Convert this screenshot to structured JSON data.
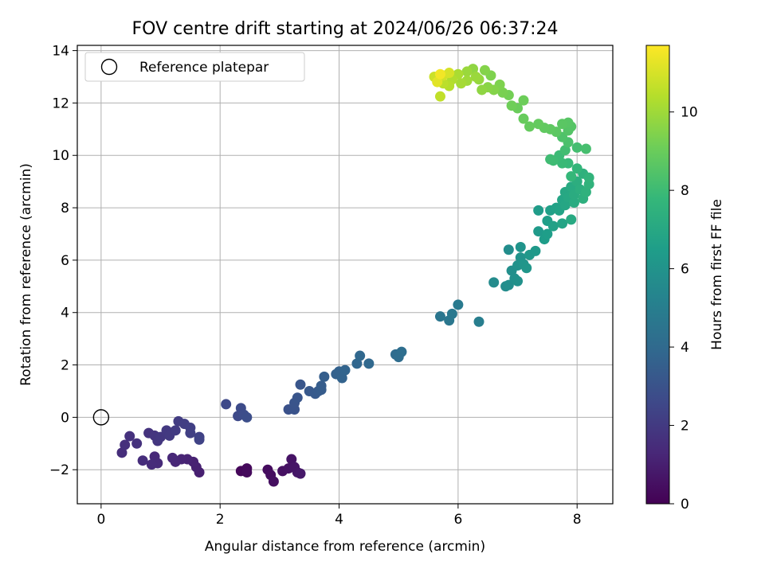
{
  "chart_data": {
    "type": "scatter",
    "title": "FOV centre drift starting at 2024/06/26 06:37:24",
    "xlabel": "Angular distance from reference (arcmin)",
    "ylabel": "Rotation from reference (arcmin)",
    "xlim": [
      -0.4,
      8.6
    ],
    "ylim": [
      -3.3,
      14.2
    ],
    "xticks": [
      0,
      2,
      4,
      6,
      8
    ],
    "yticks": [
      -2,
      0,
      2,
      4,
      6,
      8,
      10,
      12,
      14
    ],
    "grid": true,
    "legend": {
      "position": "top-left",
      "entries": [
        "Reference platepar"
      ]
    },
    "reference_point": {
      "x": 0,
      "y": 0
    },
    "colorbar": {
      "label": "Hours from first FF file",
      "colormap": "viridis",
      "range": [
        0,
        11.7
      ],
      "ticks": [
        0,
        2,
        4,
        6,
        8,
        10
      ]
    },
    "points_x_y_hours": [
      [
        2.35,
        -2.05,
        0.2
      ],
      [
        2.45,
        -1.95,
        0.25
      ],
      [
        2.45,
        -2.1,
        0.3
      ],
      [
        2.8,
        -2.0,
        0.35
      ],
      [
        2.85,
        -2.2,
        0.4
      ],
      [
        2.9,
        -2.45,
        0.45
      ],
      [
        3.05,
        -2.05,
        0.5
      ],
      [
        3.15,
        -1.95,
        0.55
      ],
      [
        3.2,
        -1.6,
        0.6
      ],
      [
        3.25,
        -1.9,
        0.65
      ],
      [
        3.3,
        -2.1,
        0.7
      ],
      [
        3.35,
        -2.15,
        0.75
      ],
      [
        1.65,
        -2.1,
        1.0
      ],
      [
        1.6,
        -1.9,
        1.05
      ],
      [
        1.55,
        -1.7,
        1.1
      ],
      [
        1.45,
        -1.6,
        1.15
      ],
      [
        1.35,
        -1.6,
        1.2
      ],
      [
        1.25,
        -1.7,
        1.25
      ],
      [
        1.2,
        -1.55,
        1.3
      ],
      [
        0.9,
        -1.5,
        1.35
      ],
      [
        0.95,
        -1.75,
        1.4
      ],
      [
        0.85,
        -1.8,
        1.45
      ],
      [
        0.7,
        -1.65,
        1.5
      ],
      [
        0.35,
        -1.35,
        1.55
      ],
      [
        0.4,
        -1.05,
        1.6
      ],
      [
        0.48,
        -0.72,
        1.65
      ],
      [
        0.6,
        -1.0,
        1.7
      ],
      [
        0.8,
        -0.6,
        1.75
      ],
      [
        0.9,
        -0.7,
        1.8
      ],
      [
        0.95,
        -0.9,
        1.85
      ],
      [
        1.0,
        -0.75,
        1.9
      ],
      [
        1.1,
        -0.5,
        1.95
      ],
      [
        1.15,
        -0.7,
        2.0
      ],
      [
        1.25,
        -0.5,
        2.05
      ],
      [
        1.3,
        -0.15,
        2.1
      ],
      [
        1.4,
        -0.25,
        2.15
      ],
      [
        1.5,
        -0.4,
        2.2
      ],
      [
        1.5,
        -0.6,
        2.25
      ],
      [
        1.65,
        -0.75,
        2.3
      ],
      [
        1.65,
        -0.85,
        2.35
      ],
      [
        2.1,
        0.5,
        2.6
      ],
      [
        2.3,
        0.05,
        2.65
      ],
      [
        2.35,
        0.35,
        2.7
      ],
      [
        2.4,
        0.1,
        2.75
      ],
      [
        2.45,
        0.0,
        2.8
      ],
      [
        3.15,
        0.3,
        2.95
      ],
      [
        3.25,
        0.3,
        3.0
      ],
      [
        3.25,
        0.55,
        3.05
      ],
      [
        3.3,
        0.75,
        3.1
      ],
      [
        3.35,
        1.25,
        3.15
      ],
      [
        3.5,
        1.0,
        3.25
      ],
      [
        3.6,
        0.9,
        3.3
      ],
      [
        3.65,
        1.0,
        3.35
      ],
      [
        3.7,
        1.05,
        3.4
      ],
      [
        3.7,
        1.2,
        3.45
      ],
      [
        3.75,
        1.55,
        3.5
      ],
      [
        3.95,
        1.65,
        3.6
      ],
      [
        4.0,
        1.75,
        3.65
      ],
      [
        4.05,
        1.5,
        3.7
      ],
      [
        4.1,
        1.8,
        3.75
      ],
      [
        4.3,
        2.05,
        3.85
      ],
      [
        4.35,
        2.35,
        3.9
      ],
      [
        4.5,
        2.05,
        3.95
      ],
      [
        4.95,
        2.4,
        4.1
      ],
      [
        5.0,
        2.3,
        4.15
      ],
      [
        5.05,
        2.5,
        4.2
      ],
      [
        5.7,
        3.85,
        4.6
      ],
      [
        5.85,
        3.7,
        4.65
      ],
      [
        5.9,
        3.95,
        4.7
      ],
      [
        6.0,
        4.3,
        4.8
      ],
      [
        6.35,
        3.65,
        5.0
      ],
      [
        6.6,
        5.15,
        5.6
      ],
      [
        6.8,
        5.0,
        5.65
      ],
      [
        6.85,
        6.4,
        5.7
      ],
      [
        6.85,
        5.05,
        5.75
      ],
      [
        6.9,
        5.6,
        5.8
      ],
      [
        6.95,
        5.3,
        5.85
      ],
      [
        7.0,
        5.2,
        5.9
      ],
      [
        7.0,
        5.8,
        5.95
      ],
      [
        7.05,
        6.1,
        6.0
      ],
      [
        7.05,
        6.5,
        6.05
      ],
      [
        7.1,
        5.85,
        6.1
      ],
      [
        7.15,
        5.7,
        6.15
      ],
      [
        7.2,
        6.2,
        6.2
      ],
      [
        7.3,
        6.35,
        6.25
      ],
      [
        7.35,
        7.1,
        6.3
      ],
      [
        7.35,
        7.9,
        6.4
      ],
      [
        7.45,
        6.8,
        6.45
      ],
      [
        7.5,
        7.0,
        6.5
      ],
      [
        7.5,
        7.5,
        6.55
      ],
      [
        7.55,
        7.9,
        6.6
      ],
      [
        7.6,
        7.3,
        6.65
      ],
      [
        7.65,
        8.0,
        6.7
      ],
      [
        7.7,
        7.9,
        6.75
      ],
      [
        7.75,
        7.4,
        6.8
      ],
      [
        7.75,
        8.3,
        6.85
      ],
      [
        7.8,
        8.1,
        6.9
      ],
      [
        7.8,
        8.6,
        6.95
      ],
      [
        7.85,
        8.4,
        7.0
      ],
      [
        7.9,
        7.55,
        7.05
      ],
      [
        7.9,
        8.8,
        7.1
      ],
      [
        7.95,
        8.2,
        7.15
      ],
      [
        7.95,
        8.5,
        7.2
      ],
      [
        8.0,
        9.0,
        7.3
      ],
      [
        8.05,
        8.7,
        7.35
      ],
      [
        8.1,
        8.35,
        7.4
      ],
      [
        8.1,
        9.3,
        7.45
      ],
      [
        8.15,
        8.6,
        7.5
      ],
      [
        8.2,
        8.9,
        7.55
      ],
      [
        8.2,
        9.15,
        7.6
      ],
      [
        8.0,
        9.5,
        7.7
      ],
      [
        7.9,
        9.2,
        7.8
      ],
      [
        7.85,
        9.7,
        7.85
      ],
      [
        7.75,
        9.7,
        7.9
      ],
      [
        7.7,
        10.0,
        7.95
      ],
      [
        7.6,
        9.8,
        8.0
      ],
      [
        7.55,
        9.85,
        8.05
      ],
      [
        7.8,
        10.2,
        8.1
      ],
      [
        8.0,
        10.3,
        8.15
      ],
      [
        8.15,
        10.25,
        8.2
      ],
      [
        7.85,
        10.5,
        8.3
      ],
      [
        7.75,
        10.7,
        8.4
      ],
      [
        7.85,
        10.95,
        8.5
      ],
      [
        7.9,
        11.1,
        8.55
      ],
      [
        7.85,
        11.25,
        8.6
      ],
      [
        7.75,
        11.2,
        8.65
      ],
      [
        7.65,
        10.9,
        8.7
      ],
      [
        7.55,
        11.0,
        8.75
      ],
      [
        7.45,
        11.05,
        8.8
      ],
      [
        7.35,
        11.2,
        8.85
      ],
      [
        7.2,
        11.1,
        8.9
      ],
      [
        7.1,
        11.4,
        8.95
      ],
      [
        7.0,
        11.8,
        9.0
      ],
      [
        7.1,
        12.1,
        9.05
      ],
      [
        6.9,
        11.9,
        9.1
      ],
      [
        6.85,
        12.3,
        9.2
      ],
      [
        6.75,
        12.4,
        9.3
      ],
      [
        6.7,
        12.7,
        9.4
      ],
      [
        6.6,
        12.5,
        9.5
      ],
      [
        6.5,
        12.6,
        9.6
      ],
      [
        6.4,
        12.5,
        9.7
      ],
      [
        6.35,
        12.9,
        9.8
      ],
      [
        6.3,
        13.0,
        9.9
      ],
      [
        6.15,
        12.85,
        10.0
      ],
      [
        6.05,
        12.75,
        10.1
      ],
      [
        6.0,
        13.1,
        10.2
      ],
      [
        5.9,
        12.9,
        10.3
      ],
      [
        5.85,
        12.65,
        10.4
      ],
      [
        5.75,
        12.75,
        10.5
      ],
      [
        5.7,
        12.25,
        10.6
      ],
      [
        5.65,
        12.9,
        10.7
      ],
      [
        5.6,
        13.0,
        10.8
      ],
      [
        5.75,
        13.05,
        10.9
      ],
      [
        5.85,
        13.15,
        11.0
      ],
      [
        5.65,
        12.8,
        11.2
      ],
      [
        5.7,
        13.1,
        11.5
      ],
      [
        6.15,
        13.2,
        9.9
      ],
      [
        6.25,
        13.3,
        9.7
      ],
      [
        6.45,
        13.25,
        9.5
      ],
      [
        6.55,
        13.05,
        9.4
      ]
    ]
  }
}
